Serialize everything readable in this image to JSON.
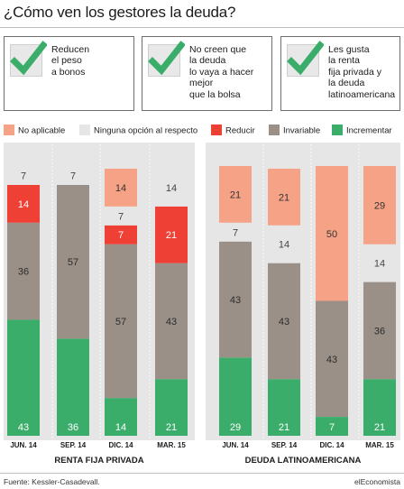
{
  "title": "¿Cómo ven los gestores la deuda?",
  "boxes": [
    {
      "text": "Reducen\nel peso\na bonos",
      "icon": "check-icon"
    },
    {
      "text": "No creen que\nla deuda\nlo vaya a hacer\nmejor\nque la bolsa",
      "icon": "check-icon"
    },
    {
      "text": "Les gusta\nla renta\nfija privada y\nla deuda\nlatinoamericana",
      "icon": "check-icon"
    }
  ],
  "colors": {
    "no_aplicable": "#f5a286",
    "ninguna": "#e6e6e6",
    "reducir": "#ee4035",
    "invariable": "#9a9087",
    "incrementar": "#3aad6b",
    "check": "#3aad6b",
    "panel": "#e6e6e6"
  },
  "legend": [
    {
      "key": "no_aplicable",
      "label": "No aplicable"
    },
    {
      "key": "ninguna",
      "label": "Ninguna opción al respecto"
    },
    {
      "key": "reducir",
      "label": "Reducir"
    },
    {
      "key": "invariable",
      "label": "Invariable"
    },
    {
      "key": "incrementar",
      "label": "Incrementar"
    }
  ],
  "chart_data": [
    {
      "type": "bar",
      "stacked": true,
      "title": "RENTA FIJA PRIVADA",
      "categories": [
        "JUN. 14",
        "SEP. 14",
        "DIC. 14",
        "MAR. 15"
      ],
      "series": [
        {
          "name": "Incrementar",
          "key": "incrementar",
          "values": [
            43,
            36,
            14,
            21
          ]
        },
        {
          "name": "Invariable",
          "key": "invariable",
          "values": [
            36,
            57,
            57,
            43
          ]
        },
        {
          "name": "Reducir",
          "key": "reducir",
          "values": [
            14,
            0,
            7,
            21
          ]
        },
        {
          "name": "Ninguna opción al respecto",
          "key": "ninguna",
          "values": [
            7,
            7,
            7,
            14
          ]
        },
        {
          "name": "No aplicable",
          "key": "no_aplicable",
          "values": [
            0,
            0,
            14,
            0
          ]
        }
      ],
      "ylim": [
        0,
        100
      ],
      "grid": false
    },
    {
      "type": "bar",
      "stacked": true,
      "title": "DEUDA LATINOAMERICANA",
      "categories": [
        "JUN. 14",
        "SEP. 14",
        "DIC. 14",
        "MAR. 15"
      ],
      "series": [
        {
          "name": "Incrementar",
          "key": "incrementar",
          "values": [
            29,
            21,
            7,
            21
          ]
        },
        {
          "name": "Invariable",
          "key": "invariable",
          "values": [
            43,
            43,
            43,
            36
          ]
        },
        {
          "name": "Reducir",
          "key": "reducir",
          "values": [
            0,
            0,
            0,
            0
          ]
        },
        {
          "name": "Ninguna opción al respecto",
          "key": "ninguna",
          "values": [
            7,
            14,
            0,
            14
          ]
        },
        {
          "name": "No aplicable",
          "key": "no_aplicable",
          "values": [
            21,
            21,
            50,
            29
          ]
        }
      ],
      "ylim": [
        0,
        100
      ],
      "grid": false
    }
  ],
  "footer": {
    "source": "Fuente: Kessler-Casadevall.",
    "brand": "elEconomista"
  }
}
